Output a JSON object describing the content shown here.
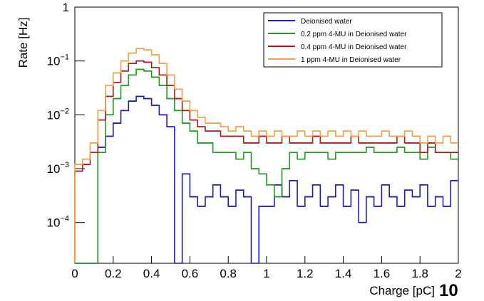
{
  "chart_data": {
    "type": "histogram",
    "xlabel": "Charge [pC]",
    "xlabel_exponent": "10",
    "ylabel": "Rate [Hz]",
    "log_y": true,
    "xlim": [
      0,
      2
    ],
    "xticks": [
      0,
      0.2,
      0.4,
      0.6,
      0.8,
      1,
      1.2,
      1.4,
      1.6,
      1.8,
      2
    ],
    "ylim": [
      1.75e-05,
      1
    ],
    "yticks": [
      {
        "value": 0.0001,
        "label": "10",
        "exponent": "−4"
      },
      {
        "value": 0.001,
        "label": "10",
        "exponent": "−3"
      },
      {
        "value": 0.01,
        "label": "10",
        "exponent": "−2"
      },
      {
        "value": 0.1,
        "label": "10",
        "exponent": "−1"
      },
      {
        "value": 1,
        "label": "1"
      }
    ],
    "bins": [
      0,
      0.04,
      0.08,
      0.12,
      0.16,
      0.2,
      0.24,
      0.28,
      0.32,
      0.36,
      0.4,
      0.44,
      0.48,
      0.52,
      0.56,
      0.6,
      0.64,
      0.68,
      0.72,
      0.76,
      0.8,
      0.84,
      0.88,
      0.92,
      0.96,
      1,
      1.04,
      1.08,
      1.12,
      1.16,
      1.2,
      1.24,
      1.28,
      1.32,
      1.36,
      1.4,
      1.44,
      1.48,
      1.52,
      1.56,
      1.6,
      1.64,
      1.68,
      1.72,
      1.76,
      1.8,
      1.84,
      1.88,
      1.92,
      1.96,
      2
    ],
    "series": [
      {
        "name": "Deionised water",
        "color": "#1c1cb4",
        "values": [
          null,
          null,
          null,
          0.0025,
          0.004,
          0.007,
          0.012,
          0.018,
          0.022,
          0.02,
          0.015,
          0.01,
          0.006,
          null,
          0.0008,
          0.0003,
          0.0002,
          0.0003,
          0.0005,
          0.0003,
          0.0002,
          0.0004,
          0.0003,
          null,
          0.0002,
          0.0002,
          0.0005,
          0.0003,
          0.0006,
          0.0002,
          0.0003,
          0.0005,
          0.0002,
          0.0003,
          0.0005,
          0.0002,
          0.0004,
          0.0001,
          0.0003,
          0.0002,
          0.0005,
          0.0003,
          0.0002,
          0.0004,
          0.0003,
          0.0005,
          0.0002,
          0.0003,
          0.0002,
          0.0006
        ]
      },
      {
        "name": "0.2 ppm 4-MU in Deionised water",
        "color": "#1f9a1f",
        "values": [
          null,
          null,
          null,
          0.002,
          0.01,
          0.02,
          0.035,
          0.055,
          0.07,
          0.065,
          0.05,
          0.035,
          0.02,
          0.012,
          0.007,
          0.005,
          0.003,
          0.003,
          0.002,
          0.002,
          0.002,
          0.0015,
          0.002,
          0.001,
          0.0008,
          0.0005,
          0.0003,
          0.001,
          0.002,
          0.0015,
          0.002,
          0.002,
          0.002,
          0.0015,
          0.002,
          0.002,
          0.002,
          0.002,
          0.0025,
          0.002,
          0.002,
          0.002,
          0.0025,
          0.002,
          0.002,
          0.0015,
          0.0025,
          0.002,
          0.002,
          0.0015
        ]
      },
      {
        "name": "0.4 ppm 4-MU in Deionised water",
        "color": "#b01818",
        "values": [
          0.0009,
          0.0012,
          0.002,
          0.008,
          0.022,
          0.04,
          0.065,
          0.09,
          0.1,
          0.095,
          0.075,
          0.055,
          0.035,
          0.02,
          0.012,
          0.008,
          0.006,
          0.005,
          0.005,
          0.004,
          0.004,
          0.004,
          0.003,
          0.003,
          0.004,
          0.003,
          0.003,
          0.004,
          0.003,
          0.003,
          0.003,
          0.004,
          0.003,
          0.003,
          0.003,
          0.003,
          0.004,
          0.003,
          0.003,
          0.003,
          0.003,
          0.003,
          0.004,
          0.003,
          0.003,
          0.002,
          0.003,
          0.002,
          0.002,
          0.002
        ]
      },
      {
        "name": "1 ppm 4-MU in Deionised water",
        "color": "#f2a048",
        "values": [
          0.0012,
          0.0015,
          0.003,
          0.012,
          0.035,
          0.06,
          0.1,
          0.14,
          0.17,
          0.16,
          0.13,
          0.09,
          0.055,
          0.03,
          0.018,
          0.012,
          0.009,
          0.007,
          0.007,
          0.006,
          0.005,
          0.006,
          0.005,
          0.004,
          0.005,
          0.004,
          0.005,
          0.004,
          0.004,
          0.005,
          0.004,
          0.005,
          0.004,
          0.005,
          0.004,
          0.005,
          0.004,
          0.005,
          0.004,
          0.004,
          0.005,
          0.004,
          0.004,
          0.005,
          0.004,
          0.003,
          0.004,
          0.003,
          0.004,
          0.003
        ]
      }
    ]
  }
}
